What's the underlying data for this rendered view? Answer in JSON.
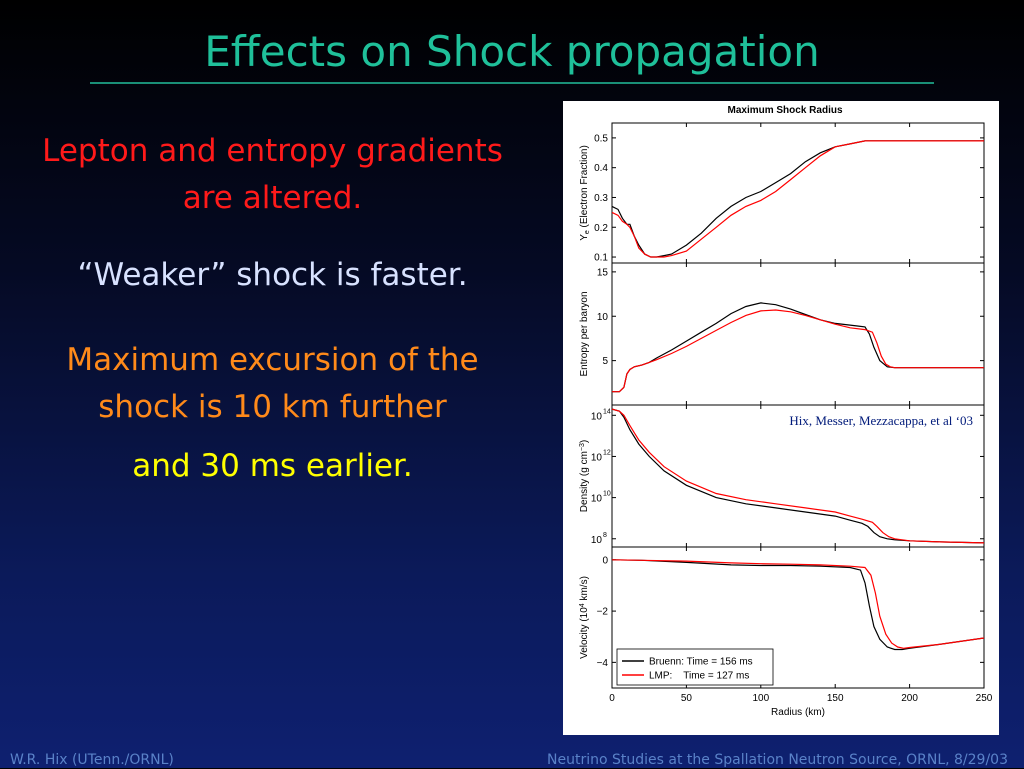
{
  "slide": {
    "title": "Effects on Shock propagation",
    "bullets": [
      "Lepton and entropy gradients are altered.",
      "“Weaker” shock is faster.",
      "Maximum excursion of the shock is 10 km further",
      "and 30 ms earlier."
    ],
    "footer_left": "W.R. Hix (UTenn./ORNL)",
    "footer_right": "Neutrino Studies at the Spallation Neutron Source, ORNL, 8/29/03"
  },
  "colors": {
    "title": "#1fc09a",
    "bullet1": "#ff1a1a",
    "bullet2": "#d8e2ff",
    "bullet3": "#ff8a1a",
    "bullet4": "#ffff00",
    "bruenn": "#000000",
    "lmp": "#ff0000"
  },
  "chart_data": {
    "type": "line",
    "title": "Maximum Shock Radius",
    "credit": "Hix, Messer, Mezzacappa, et al ‘03",
    "xlabel": "Radius (km)",
    "xlim": [
      0,
      250
    ],
    "xticks": [
      "0",
      "50",
      "100",
      "150",
      "200",
      "250"
    ],
    "legend": {
      "placement": "bottom-left",
      "entries": [
        "Bruenn: Time = 156 ms",
        "LMP:    Time = 127 ms"
      ]
    },
    "panels": [
      {
        "id": "ye",
        "ylabel_main": "Y",
        "ylabel_sub": "e",
        "ylabel_rest": "(Electron Fraction)",
        "ylim": [
          0.08,
          0.55
        ],
        "yticks": [
          0.1,
          0.2,
          0.3,
          0.4,
          0.5
        ],
        "ytick_labels": [
          "0.1",
          "0.2",
          "0.3",
          "0.4",
          "0.5"
        ],
        "series": [
          {
            "x": [
              0,
              4,
              7,
              10,
              12,
              15,
              18,
              22,
              26,
              30,
              35,
              40,
              50,
              60,
              70,
              80,
              90,
              100,
              110,
              120,
              130,
              140,
              150,
              160,
              170,
              180,
              190,
              200,
              220,
              250
            ],
            "y": [
              0.27,
              0.26,
              0.23,
              0.21,
              0.21,
              0.17,
              0.14,
              0.11,
              0.1,
              0.1,
              0.105,
              0.11,
              0.14,
              0.18,
              0.23,
              0.27,
              0.3,
              0.32,
              0.35,
              0.38,
              0.42,
              0.45,
              0.47,
              0.48,
              0.49,
              0.49,
              0.49,
              0.49,
              0.49,
              0.49
            ]
          },
          {
            "x": [
              0,
              4,
              7,
              10,
              12,
              15,
              18,
              22,
              26,
              30,
              35,
              40,
              50,
              60,
              70,
              80,
              90,
              100,
              110,
              120,
              130,
              140,
              150,
              160,
              170,
              180,
              190,
              200,
              220,
              250
            ],
            "y": [
              0.25,
              0.24,
              0.22,
              0.21,
              0.2,
              0.17,
              0.13,
              0.11,
              0.1,
              0.1,
              0.1,
              0.105,
              0.12,
              0.16,
              0.2,
              0.24,
              0.27,
              0.29,
              0.32,
              0.36,
              0.4,
              0.44,
              0.47,
              0.48,
              0.49,
              0.49,
              0.49,
              0.49,
              0.49,
              0.49
            ]
          }
        ]
      },
      {
        "id": "entropy",
        "ylabel": "Entropy per baryon",
        "ylim": [
          0,
          16
        ],
        "yticks": [
          5,
          10,
          15
        ],
        "ytick_labels": [
          "5",
          "10",
          "15"
        ],
        "series": [
          {
            "x": [
              0,
              5,
              8,
              10,
              12,
              15,
              20,
              25,
              30,
              40,
              50,
              60,
              70,
              80,
              90,
              100,
              110,
              120,
              130,
              140,
              150,
              160,
              165,
              170,
              173,
              176,
              180,
              185,
              190,
              200,
              220,
              250
            ],
            "y": [
              1.5,
              1.5,
              2,
              3.5,
              4,
              4.3,
              4.5,
              4.8,
              5.3,
              6.2,
              7.2,
              8.2,
              9.2,
              10.3,
              11.1,
              11.5,
              11.3,
              10.8,
              10.2,
              9.6,
              9.2,
              9.0,
              8.9,
              8.8,
              8.0,
              6.5,
              5.0,
              4.3,
              4.2,
              4.2,
              4.2,
              4.2
            ]
          },
          {
            "x": [
              0,
              5,
              8,
              10,
              12,
              15,
              20,
              25,
              30,
              40,
              50,
              60,
              70,
              80,
              90,
              100,
              110,
              120,
              130,
              140,
              150,
              160,
              170,
              175,
              178,
              181,
              184,
              187,
              190,
              200,
              220,
              250
            ],
            "y": [
              1.5,
              1.5,
              2,
              3.5,
              4,
              4.3,
              4.5,
              4.8,
              5.1,
              5.8,
              6.6,
              7.5,
              8.4,
              9.3,
              10.1,
              10.6,
              10.7,
              10.5,
              10.1,
              9.6,
              9.1,
              8.7,
              8.5,
              8.2,
              7.0,
              5.5,
              4.6,
              4.3,
              4.2,
              4.2,
              4.2,
              4.2
            ]
          }
        ]
      },
      {
        "id": "density",
        "ylabel_main": "Density (g cm",
        "ylabel_sup": "−3",
        "ylabel_end": ")",
        "scale": "log",
        "ylim": [
          7.6,
          14.5
        ],
        "yticks": [
          8,
          10,
          12,
          14
        ],
        "ytick_labels": [
          "8",
          "10",
          "12",
          "14"
        ],
        "ytick_base": "10",
        "series": [
          {
            "x": [
              0,
              5,
              8,
              12,
              18,
              25,
              35,
              50,
              70,
              90,
              110,
              130,
              150,
              160,
              168,
              172,
              176,
              180,
              185,
              190,
              200,
              220,
              250
            ],
            "y": [
              14.3,
              14.2,
              13.9,
              13.3,
              12.6,
              12.0,
              11.3,
              10.6,
              10.0,
              9.7,
              9.5,
              9.3,
              9.1,
              8.9,
              8.75,
              8.6,
              8.3,
              8.1,
              8.0,
              7.95,
              7.9,
              7.85,
              7.8
            ]
          },
          {
            "x": [
              0,
              5,
              8,
              12,
              18,
              25,
              35,
              50,
              70,
              90,
              110,
              130,
              150,
              160,
              168,
              175,
              178,
              182,
              186,
              190,
              200,
              220,
              250
            ],
            "y": [
              14.3,
              14.2,
              14.0,
              13.5,
              12.8,
              12.2,
              11.5,
              10.8,
              10.2,
              9.9,
              9.7,
              9.5,
              9.3,
              9.1,
              8.95,
              8.8,
              8.6,
              8.3,
              8.1,
              8.0,
              7.9,
              7.85,
              7.8
            ]
          }
        ]
      },
      {
        "id": "velocity",
        "ylabel_main": "Velocity (10",
        "ylabel_sup": "4",
        "ylabel_end": " km/s)",
        "ylim": [
          -5,
          0.5
        ],
        "yticks": [
          -4,
          -2,
          0
        ],
        "ytick_labels": [
          "−4",
          "−2",
          "0"
        ],
        "series": [
          {
            "x": [
              0,
              20,
              50,
              80,
              100,
              120,
              140,
              160,
              167,
              170,
              173,
              176,
              180,
              185,
              190,
              195,
              200,
              220,
              250
            ],
            "y": [
              0,
              -0.02,
              -0.1,
              -0.2,
              -0.22,
              -0.22,
              -0.25,
              -0.3,
              -0.4,
              -0.9,
              -1.8,
              -2.6,
              -3.1,
              -3.4,
              -3.5,
              -3.5,
              -3.45,
              -3.3,
              -3.05
            ]
          },
          {
            "x": [
              0,
              20,
              50,
              80,
              100,
              120,
              140,
              160,
              170,
              174,
              177,
              180,
              184,
              188,
              192,
              196,
              200,
              220,
              250
            ],
            "y": [
              0,
              -0.02,
              -0.05,
              -0.12,
              -0.15,
              -0.17,
              -0.2,
              -0.25,
              -0.3,
              -0.6,
              -1.3,
              -2.2,
              -2.9,
              -3.25,
              -3.4,
              -3.45,
              -3.42,
              -3.3,
              -3.05
            ]
          }
        ]
      }
    ]
  }
}
